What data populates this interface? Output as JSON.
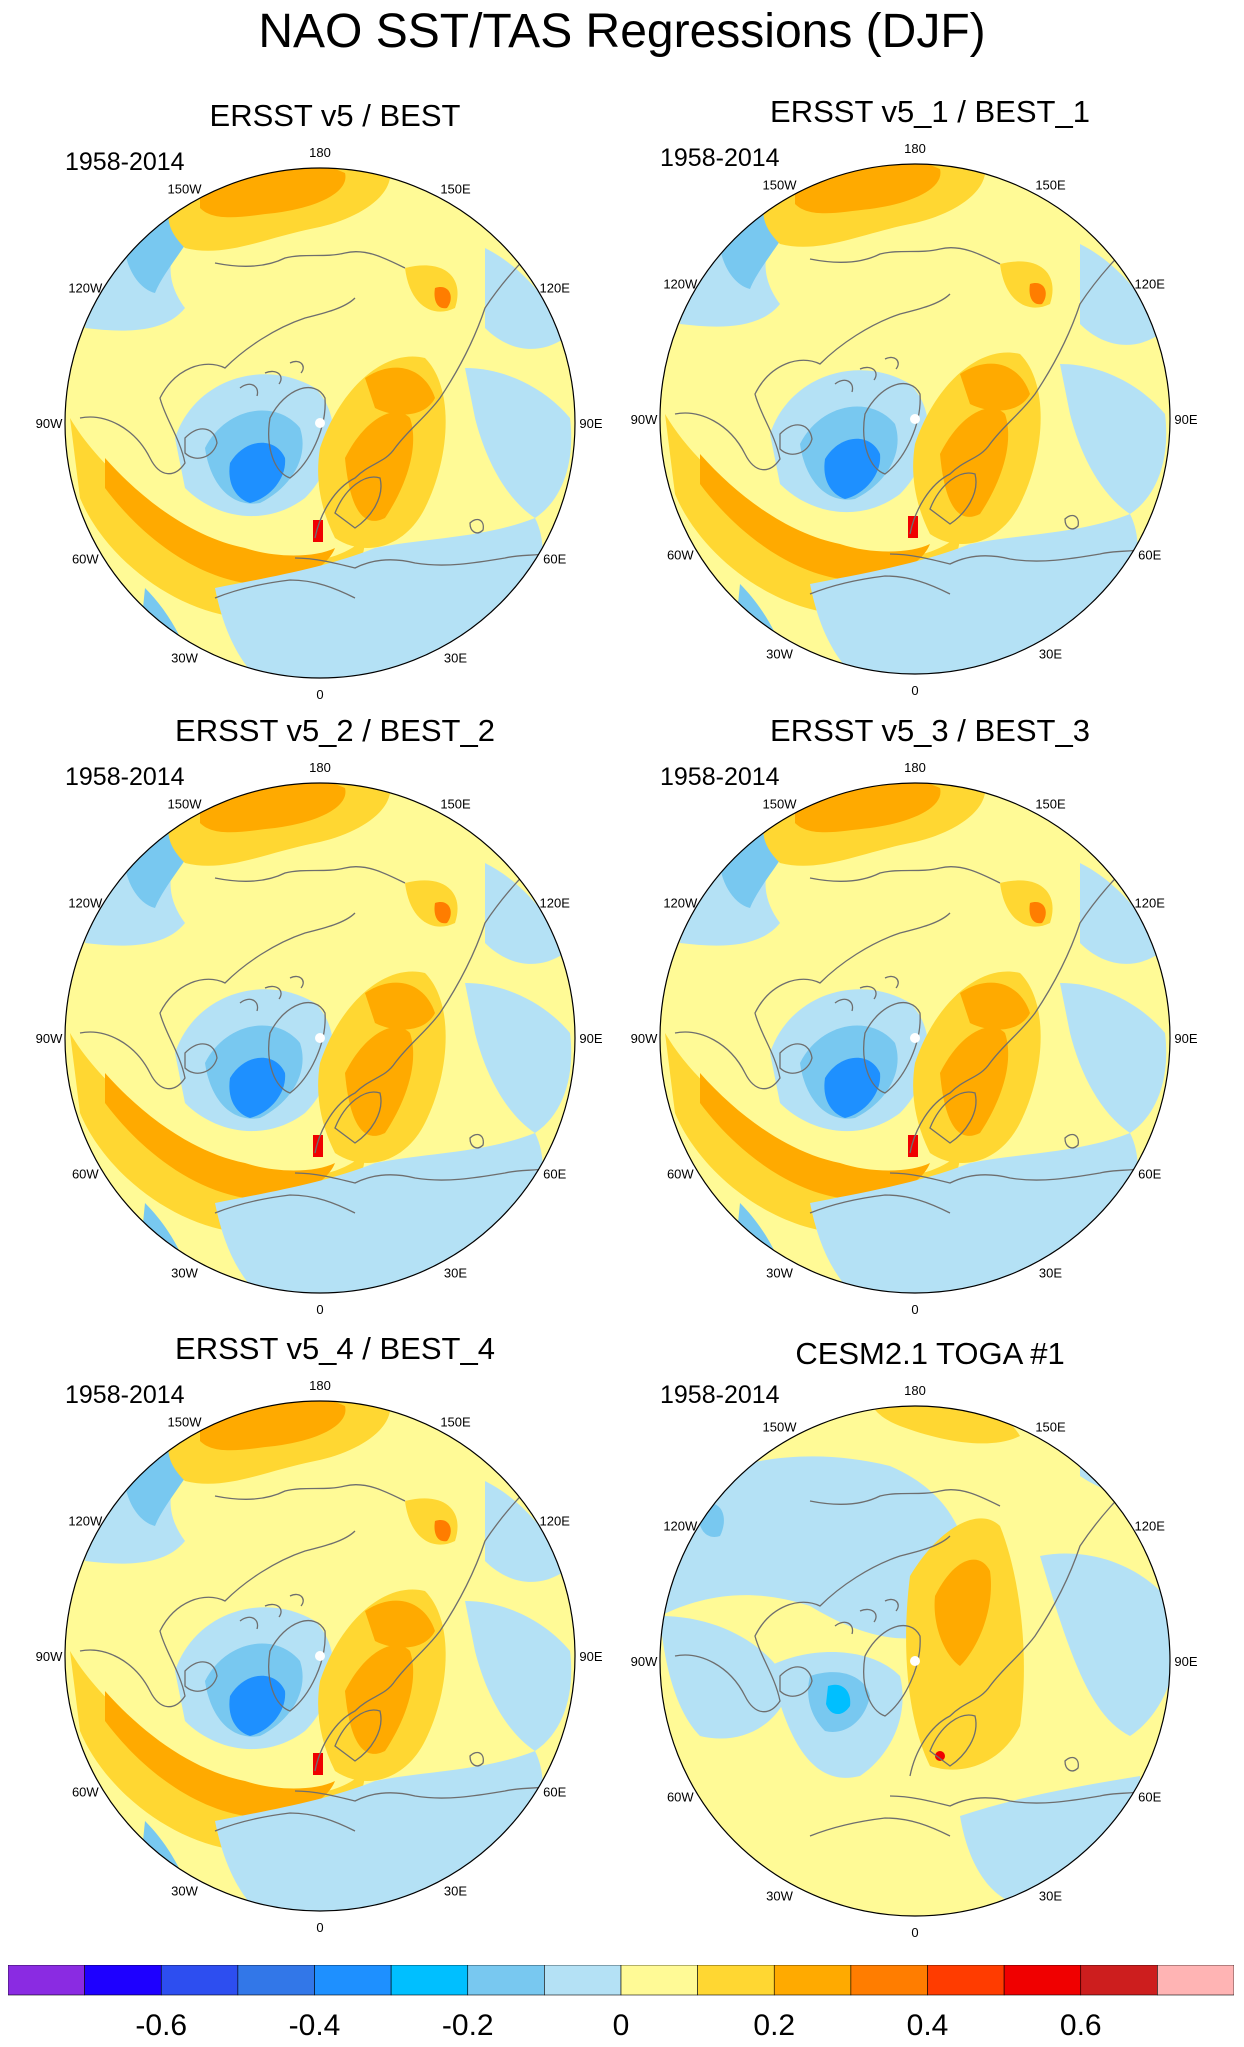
{
  "figure": {
    "title": "NAO SST/TAS Regressions (DJF)"
  },
  "panels": [
    {
      "title": "ERSST v5 / BEST",
      "period": "1958-2014",
      "variant": "obs"
    },
    {
      "title": "ERSST v5_1 / BEST_1",
      "period": "1958-2014",
      "variant": "obs"
    },
    {
      "title": "ERSST v5_2 / BEST_2",
      "period": "1958-2014",
      "variant": "obs"
    },
    {
      "title": "ERSST v5_3 / BEST_3",
      "period": "1958-2014",
      "variant": "obs"
    },
    {
      "title": "ERSST v5_4 / BEST_4",
      "period": "1958-2014",
      "variant": "obs"
    },
    {
      "title": "CESM2.1 TOGA #1",
      "period": "1958-2014",
      "variant": "model"
    }
  ],
  "longitude_labels": [
    "180",
    "150E",
    "120E",
    "90E",
    "60E",
    "30E",
    "0",
    "30W",
    "60W",
    "90W",
    "120W",
    "150W"
  ],
  "colorbar": {
    "colors": [
      "#8a2be2",
      "#1e00ff",
      "#2d4ef0",
      "#3277e8",
      "#1e90ff",
      "#00bfff",
      "#78c8f0",
      "#b4e1f5",
      "#fffa96",
      "#ffd732",
      "#ffaa00",
      "#ff7d00",
      "#ff3c00",
      "#f00000",
      "#cd1e1e",
      "#ffb4b4"
    ],
    "tick_labels": [
      "-0.6",
      "-0.4",
      "-0.2",
      "0",
      "0.2",
      "0.4",
      "0.6"
    ]
  },
  "palette": {
    "land_outline": "#6e6e6e",
    "frame": "#000000"
  }
}
